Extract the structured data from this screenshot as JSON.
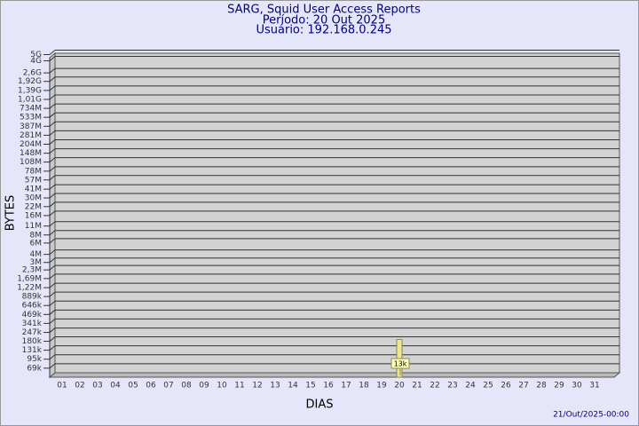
{
  "chart_data": {
    "type": "bar",
    "title": "SARG, Squid User Access Reports",
    "subtitle": [
      "Período: 20 Out 2025",
      "Usuário: 192.168.0.245"
    ],
    "y_label": "BYTES",
    "x_label": "DIAS",
    "footer": "21/Out/2025-00:00",
    "categories": [
      "01",
      "02",
      "03",
      "04",
      "05",
      "06",
      "07",
      "08",
      "09",
      "10",
      "11",
      "12",
      "13",
      "14",
      "15",
      "16",
      "17",
      "18",
      "19",
      "20",
      "21",
      "22",
      "23",
      "24",
      "25",
      "26",
      "27",
      "28",
      "29",
      "30",
      "31"
    ],
    "values": [
      null,
      null,
      null,
      null,
      null,
      null,
      null,
      null,
      null,
      null,
      null,
      null,
      null,
      null,
      null,
      null,
      null,
      null,
      null,
      13000,
      null,
      null,
      null,
      null,
      null,
      null,
      null,
      null,
      null,
      null,
      null
    ],
    "value_labels": [
      null,
      null,
      null,
      null,
      null,
      null,
      null,
      null,
      null,
      null,
      null,
      null,
      null,
      null,
      null,
      null,
      null,
      null,
      null,
      "13k",
      null,
      null,
      null,
      null,
      null,
      null,
      null,
      null,
      null,
      null,
      null
    ],
    "color": "#f0e68c",
    "log_scale": true,
    "ylim": [
      50000,
      5000000000
    ],
    "yticks": [
      {
        "value": 5000000000,
        "label": "5G"
      },
      {
        "value": 4000000000,
        "label": "4G"
      },
      {
        "value": 2600000000,
        "label": "2,6G"
      },
      {
        "value": 1920000000,
        "label": "1,92G"
      },
      {
        "value": 1390000000,
        "label": "1,39G"
      },
      {
        "value": 1010000000,
        "label": "1,01G"
      },
      {
        "value": 734000000,
        "label": "734M"
      },
      {
        "value": 533000000,
        "label": "533M"
      },
      {
        "value": 387000000,
        "label": "387M"
      },
      {
        "value": 281000000,
        "label": "281M"
      },
      {
        "value": 204000000,
        "label": "204M"
      },
      {
        "value": 148000000,
        "label": "148M"
      },
      {
        "value": 108000000,
        "label": "108M"
      },
      {
        "value": 78000000,
        "label": "78M"
      },
      {
        "value": 57000000,
        "label": "57M"
      },
      {
        "value": 41000000,
        "label": "41M"
      },
      {
        "value": 30000000,
        "label": "30M"
      },
      {
        "value": 22000000,
        "label": "22M"
      },
      {
        "value": 16000000,
        "label": "16M"
      },
      {
        "value": 11000000,
        "label": "11M"
      },
      {
        "value": 8000000,
        "label": "8M"
      },
      {
        "value": 6000000,
        "label": "6M"
      },
      {
        "value": 4000000,
        "label": "4M"
      },
      {
        "value": 3000000,
        "label": "3M"
      },
      {
        "value": 2300000,
        "label": "2,3M"
      },
      {
        "value": 1690000,
        "label": "1,69M"
      },
      {
        "value": 1220000,
        "label": "1,22M"
      },
      {
        "value": 889000,
        "label": "889k"
      },
      {
        "value": 646000,
        "label": "646k"
      },
      {
        "value": 469000,
        "label": "469k"
      },
      {
        "value": 341000,
        "label": "341k"
      },
      {
        "value": 247000,
        "label": "247k"
      },
      {
        "value": 180000,
        "label": "180k"
      },
      {
        "value": 131000,
        "label": "131k"
      },
      {
        "value": 95000,
        "label": "95k"
      },
      {
        "value": 69000,
        "label": "69k"
      }
    ],
    "grid": true
  }
}
